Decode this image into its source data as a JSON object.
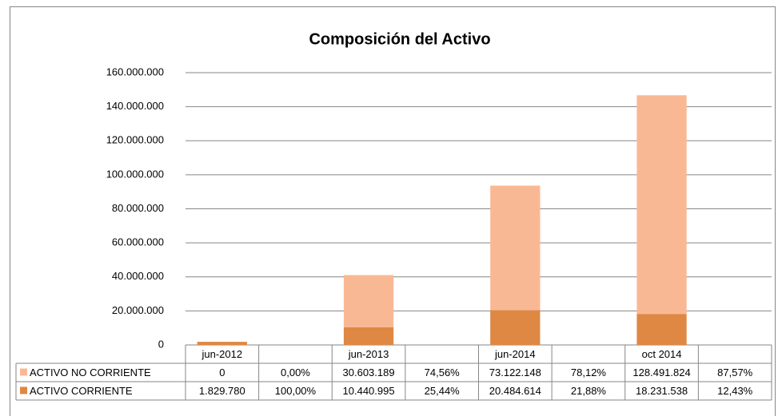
{
  "chart_data": {
    "type": "stacked_bar",
    "title": "Composición del Activo",
    "categories": [
      "jun-2012",
      null,
      "jun-2013",
      null,
      "jun-2014",
      null,
      "oct 2014",
      null
    ],
    "series": [
      {
        "name": "ACTIVO NO CORRIENTE",
        "color": "#f9b894",
        "values": [
          0,
          0,
          30603189,
          74.56,
          73122148,
          78.12,
          128491824,
          87.57
        ],
        "value_labels": [
          "0",
          "0,00%",
          "30.603.189",
          "74,56%",
          "73.122.148",
          "78,12%",
          "128.491.824",
          "87,57%"
        ]
      },
      {
        "name": "ACTIVO CORRIENTE",
        "color": "#de8844",
        "values": [
          1829780,
          100,
          10440995,
          25.44,
          20484614,
          21.88,
          18231538,
          12.43
        ],
        "value_labels": [
          "1.829.780",
          "100,00%",
          "10.440.995",
          "25,44%",
          "20.484.614",
          "21,88%",
          "18.231.538",
          "12,43%"
        ]
      }
    ],
    "ylim": [
      0,
      160000000
    ],
    "yticks": [
      0,
      {
        "value": 20000000,
        "label": "20.000.000"
      },
      {
        "value": 40000000,
        "label": "40.000.000"
      },
      {
        "value": 60000000,
        "label": "60.000.000"
      },
      {
        "value": 80000000,
        "label": "80.000.000"
      },
      {
        "value": 100000000,
        "label": "100.000.000"
      },
      {
        "value": 120000000,
        "label": "120.000.000"
      },
      {
        "value": 140000000,
        "label": "140.000.000"
      },
      {
        "value": 160000000,
        "label": "160.000.000"
      }
    ],
    "grid": true
  }
}
